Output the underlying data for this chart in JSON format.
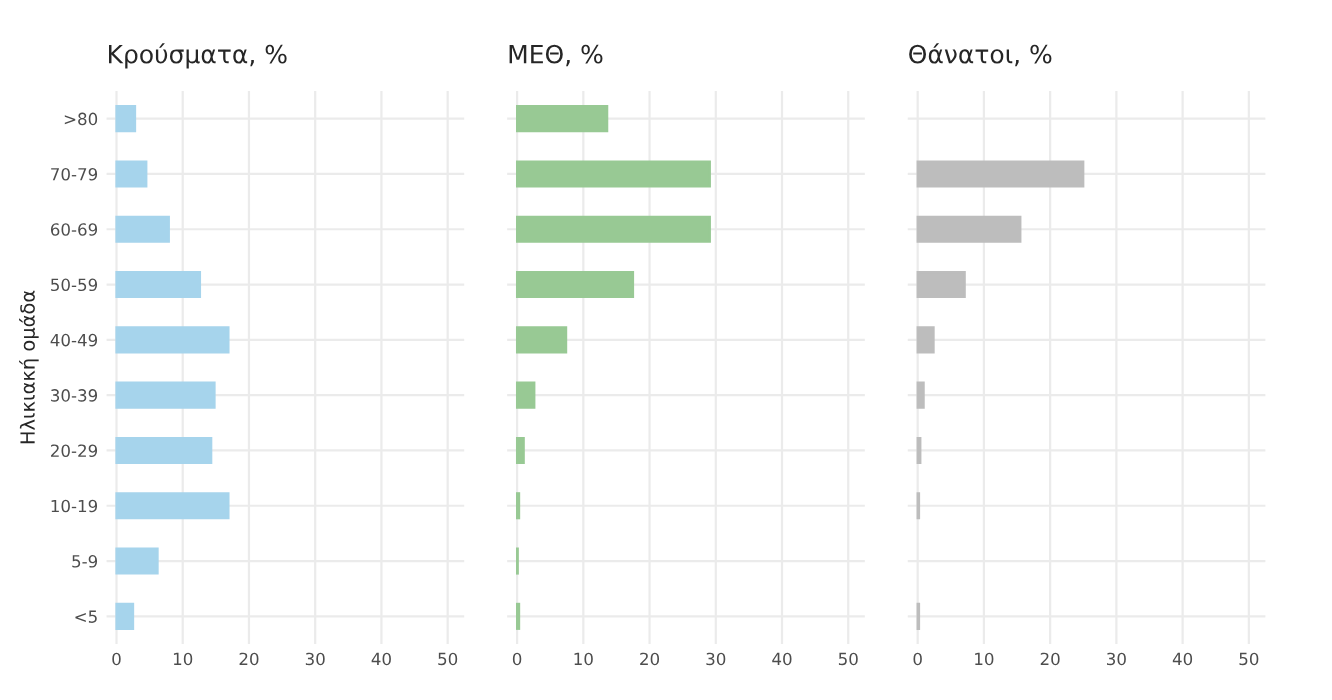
{
  "chart_data": [
    {
      "type": "bar",
      "orientation": "horizontal",
      "title": "Κρούσματα, %",
      "ylabel": "Ηλικιακή ομάδα",
      "categories": [
        ">80",
        "70-79",
        "60-69",
        "50-59",
        "40-49",
        "30-39",
        "20-29",
        "10-19",
        "5-9",
        "<5"
      ],
      "values": [
        2.8,
        4.5,
        7.9,
        12.6,
        16.9,
        14.8,
        14.3,
        16.9,
        6.2,
        2.5
      ],
      "color": "#a6d4ec",
      "xlim": [
        -1.5,
        52.5
      ],
      "xticks": [
        0,
        10,
        20,
        30,
        40,
        50
      ],
      "grid": true
    },
    {
      "type": "bar",
      "orientation": "horizontal",
      "title": "ΜΕΘ, %",
      "categories": [
        null,
        null,
        null,
        null,
        null,
        null,
        null,
        null,
        null,
        null
      ],
      "values": [
        13.6,
        29.1,
        29.1,
        17.5,
        7.4,
        2.6,
        1.0,
        0.3,
        0.1,
        0.3
      ],
      "color": "#98c994",
      "xlim": [
        -1.5,
        52.5
      ],
      "xticks": [
        0,
        10,
        20,
        30,
        40,
        50
      ],
      "grid": true,
      "tick_labels": "x"
    },
    {
      "type": "bar",
      "orientation": "horizontal",
      "title": "Θάνατοι, %",
      "categories": [
        null,
        null,
        null,
        null,
        null,
        null,
        null,
        null,
        null,
        null
      ],
      "values": [
        null,
        25.0,
        15.5,
        7.1,
        2.4,
        0.9,
        0.4,
        0.2,
        null,
        0.2
      ],
      "color": "#bdbdbd",
      "xlim": [
        -1.5,
        52.5
      ],
      "xticks": [
        0,
        10,
        20,
        30,
        40,
        50
      ],
      "grid": true,
      "tick_labels": "x"
    }
  ]
}
